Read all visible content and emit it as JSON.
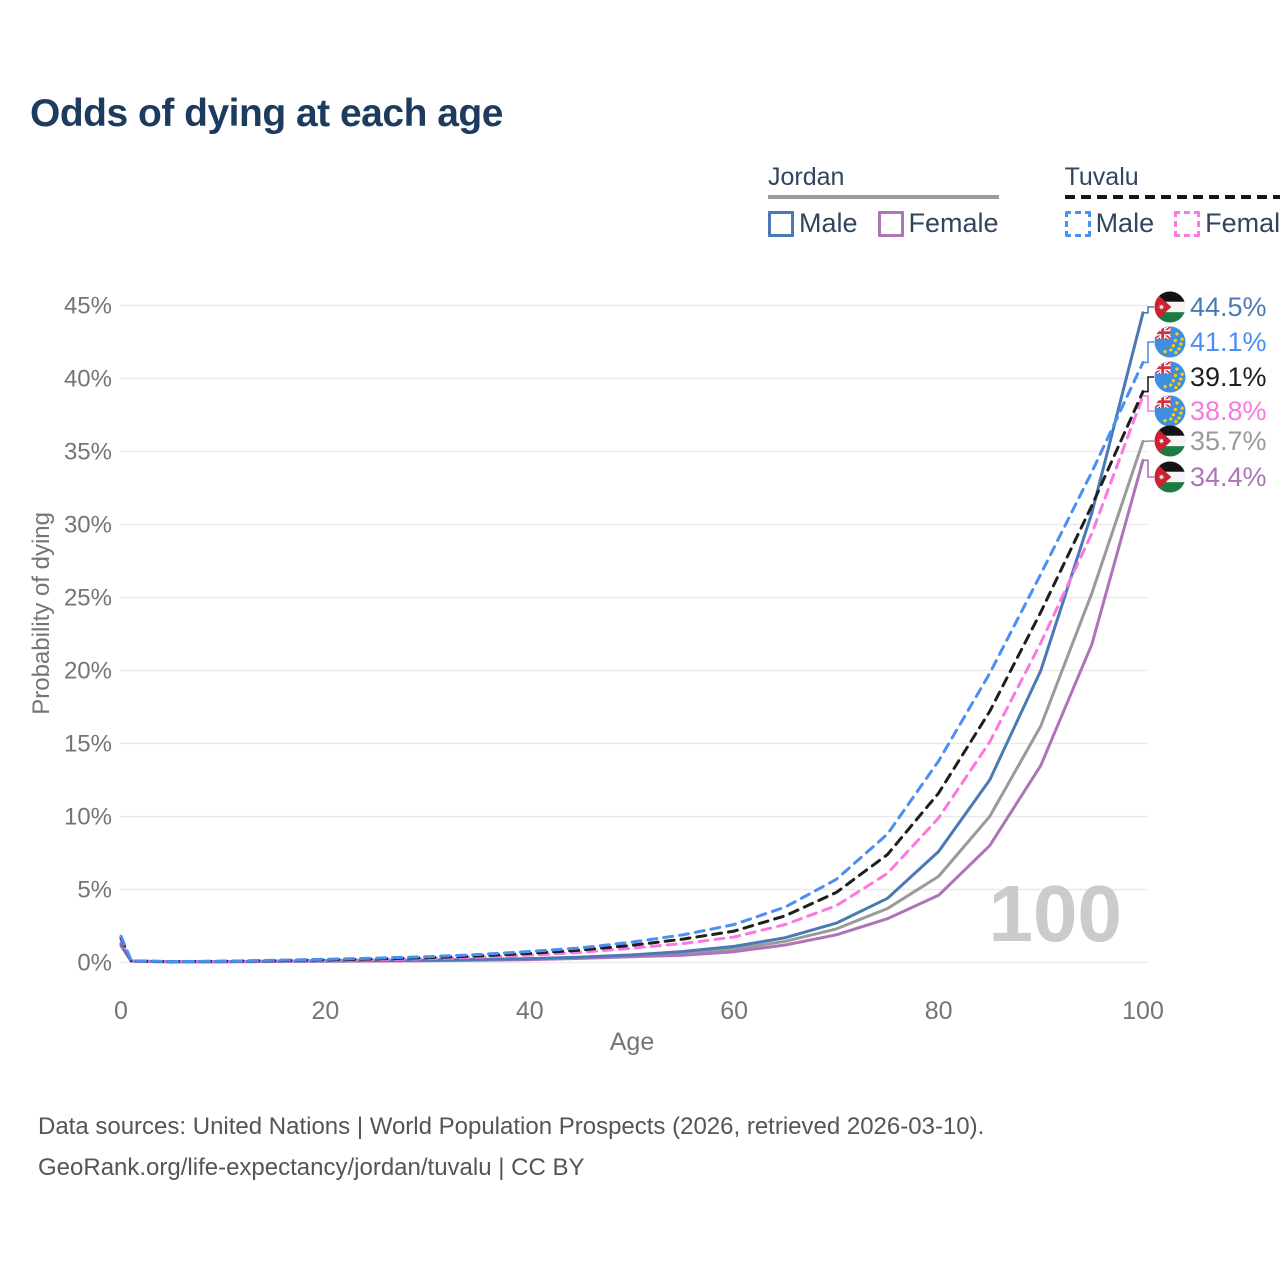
{
  "title": "Odds of dying at each age",
  "legend": {
    "groups": [
      {
        "name": "Jordan",
        "line_style": "solid",
        "underline_color": "#9b9b9b",
        "items": [
          {
            "label": "Male",
            "color": "#4a7ab5",
            "dashed": false
          },
          {
            "label": "Female",
            "color": "#ad74b8",
            "dashed": false
          }
        ]
      },
      {
        "name": "Tuvalu",
        "line_style": "dashed",
        "underline_color": "#161616",
        "items": [
          {
            "label": "Male",
            "color": "#4a8ff2",
            "dashed": true
          },
          {
            "label": "Female",
            "color": "#fc78de",
            "dashed": true
          }
        ]
      }
    ]
  },
  "chart_data": {
    "type": "line",
    "title": "Odds of dying at each age",
    "xlabel": "Age",
    "ylabel": "Probability of dying",
    "xlim": [
      0,
      100
    ],
    "ylim": [
      0,
      45
    ],
    "x_ticks": [
      0,
      20,
      40,
      60,
      80,
      100
    ],
    "y_ticks": [
      0,
      5,
      10,
      15,
      20,
      25,
      30,
      35,
      40,
      45
    ],
    "y_tick_suffix": "%",
    "grid": "horizontal",
    "watermark": "100",
    "ages": [
      0,
      1,
      5,
      10,
      15,
      20,
      25,
      30,
      35,
      40,
      45,
      50,
      55,
      60,
      65,
      70,
      75,
      80,
      85,
      90,
      95,
      100
    ],
    "series": [
      {
        "name": "Jordan (both sexes)",
        "country": "Jordan",
        "sex": "Both",
        "color": "#9a9a9a",
        "dashed": false,
        "end_value_pct": 35.7,
        "values": [
          1.22,
          0.09,
          0.045,
          0.055,
          0.08,
          0.11,
          0.13,
          0.15,
          0.18,
          0.24,
          0.33,
          0.46,
          0.62,
          0.92,
          1.45,
          2.3,
          3.7,
          5.9,
          10.0,
          16.2,
          25.3,
          35.7
        ]
      },
      {
        "name": "Jordan Female",
        "country": "Jordan",
        "sex": "Female",
        "color": "#ad74b8",
        "dashed": false,
        "end_value_pct": 34.4,
        "values": [
          1.15,
          0.09,
          0.04,
          0.05,
          0.07,
          0.09,
          0.1,
          0.12,
          0.15,
          0.2,
          0.28,
          0.4,
          0.5,
          0.74,
          1.2,
          1.9,
          3.0,
          4.6,
          8.0,
          13.5,
          21.8,
          34.4
        ]
      },
      {
        "name": "Jordan Male",
        "country": "Jordan",
        "sex": "Male",
        "color": "#4a7ab5",
        "dashed": false,
        "end_value_pct": 44.5,
        "values": [
          1.3,
          0.1,
          0.05,
          0.06,
          0.09,
          0.13,
          0.15,
          0.17,
          0.21,
          0.27,
          0.37,
          0.52,
          0.75,
          1.1,
          1.7,
          2.7,
          4.4,
          7.6,
          12.5,
          20.0,
          30.8,
          44.5
        ]
      },
      {
        "name": "Tuvalu Female",
        "country": "Tuvalu",
        "sex": "Female",
        "color": "#fc78de",
        "dashed": true,
        "end_value_pct": 38.8,
        "values": [
          1.55,
          0.1,
          0.05,
          0.07,
          0.1,
          0.14,
          0.19,
          0.26,
          0.36,
          0.5,
          0.7,
          0.98,
          1.3,
          1.75,
          2.6,
          3.9,
          6.1,
          9.9,
          15.1,
          21.9,
          29.4,
          38.8
        ]
      },
      {
        "name": "Tuvalu (both sexes)",
        "country": "Tuvalu",
        "sex": "Both",
        "color": "#1f1f1f",
        "dashed": true,
        "end_value_pct": 39.1,
        "values": [
          1.7,
          0.11,
          0.055,
          0.08,
          0.13,
          0.18,
          0.25,
          0.33,
          0.45,
          0.62,
          0.85,
          1.18,
          1.6,
          2.15,
          3.2,
          4.8,
          7.4,
          11.6,
          17.2,
          24.0,
          31.3,
          39.1
        ]
      },
      {
        "name": "Tuvalu Male",
        "country": "Tuvalu",
        "sex": "Male",
        "color": "#4a8ff2",
        "dashed": true,
        "end_value_pct": 41.1,
        "values": [
          1.8,
          0.12,
          0.06,
          0.09,
          0.15,
          0.22,
          0.3,
          0.4,
          0.55,
          0.75,
          1.0,
          1.4,
          1.9,
          2.6,
          3.8,
          5.7,
          8.8,
          13.8,
          19.8,
          26.6,
          33.6,
          41.1
        ]
      }
    ],
    "end_labels": [
      {
        "text": "44.5%",
        "series": "Jordan Male",
        "flag": "jordan",
        "color": "#4a7ab5",
        "value_pct": 44.5
      },
      {
        "text": "41.1%",
        "series": "Tuvalu Male",
        "flag": "tuvalu",
        "color": "#4a8ff2",
        "value_pct": 41.1
      },
      {
        "text": "39.1%",
        "series": "Tuvalu (both sexes)",
        "flag": "tuvalu",
        "color": "#1f1f1f",
        "value_pct": 39.1
      },
      {
        "text": "38.8%",
        "series": "Tuvalu Female",
        "flag": "tuvalu",
        "color": "#fc78de",
        "value_pct": 38.8
      },
      {
        "text": "35.7%",
        "series": "Jordan (both sexes)",
        "flag": "jordan",
        "color": "#9a9a9a",
        "value_pct": 35.7
      },
      {
        "text": "34.4%",
        "series": "Jordan Female",
        "flag": "jordan",
        "color": "#ad74b8",
        "value_pct": 34.4
      }
    ]
  },
  "footer": {
    "line1": "Data sources: United Nations | World Population Prospects (2026, retrieved 2026-03-10).",
    "line2": "GeoRank.org/life-expectancy/jordan/tuvalu | CC BY"
  }
}
